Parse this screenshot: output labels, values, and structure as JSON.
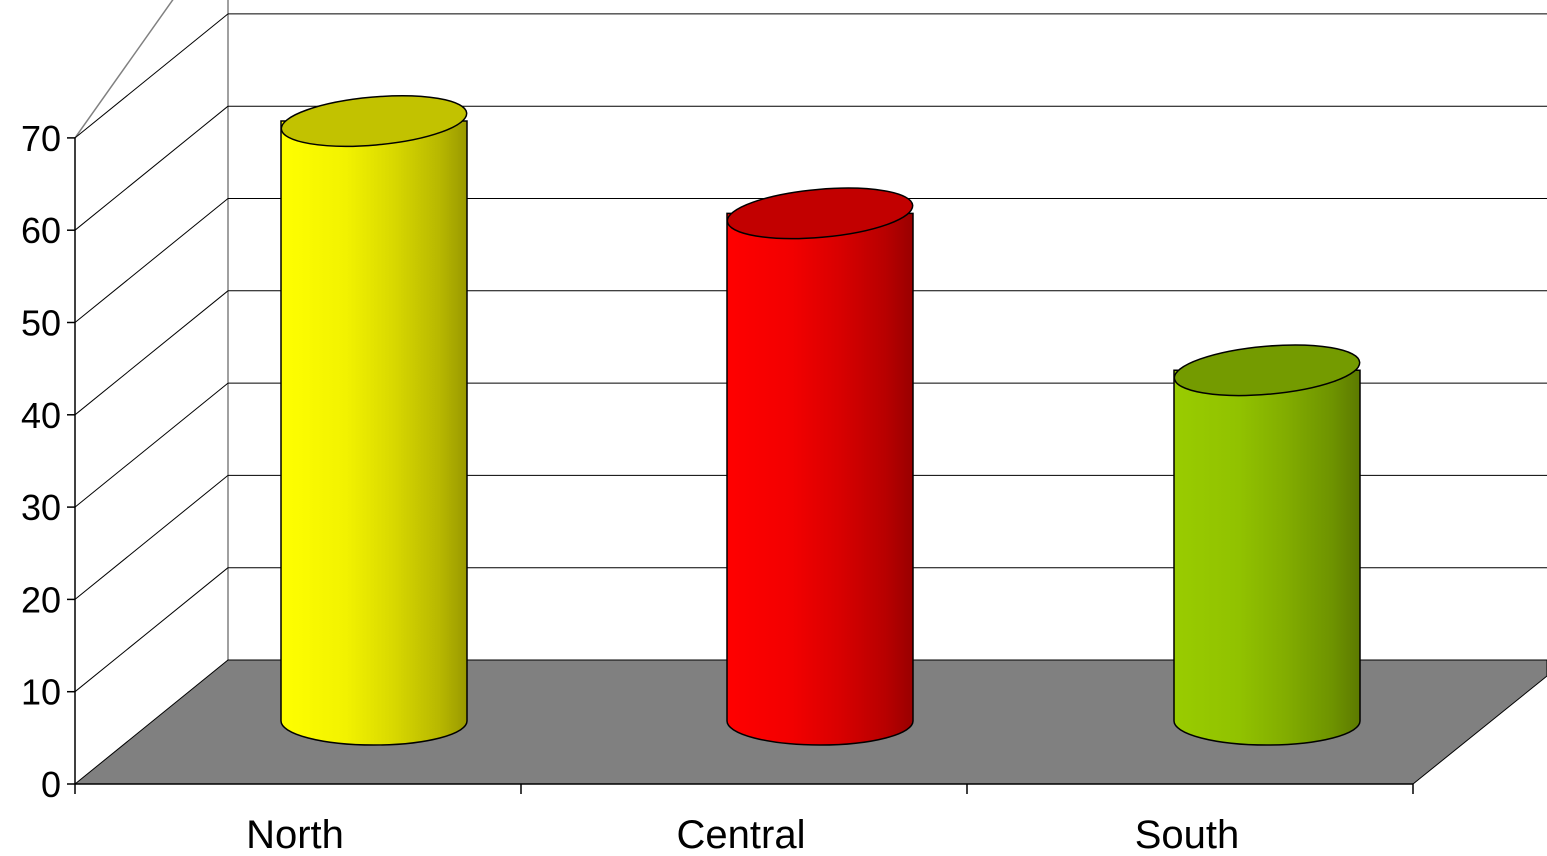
{
  "chart_data": {
    "type": "bar",
    "style": "3d-cylinder",
    "categories": [
      "North",
      "Central",
      "South"
    ],
    "values": [
      65,
      55,
      38
    ],
    "colors": [
      "#ffff00",
      "#ff0000",
      "#99cc00"
    ],
    "ylim": [
      0,
      70
    ],
    "yticks": [
      "0",
      "10",
      "20",
      "30",
      "40",
      "50",
      "60",
      "70"
    ],
    "grid": true,
    "floor_color": "#808080",
    "title": "",
    "xlabel": "",
    "ylabel": ""
  }
}
